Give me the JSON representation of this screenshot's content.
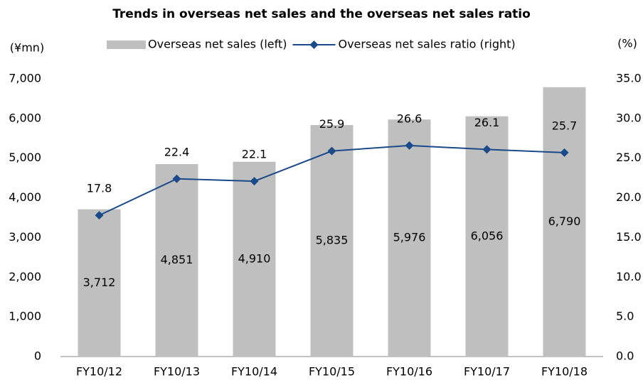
{
  "chart_data": {
    "type": "bar-line",
    "title": "Trends in overseas net sales and the overseas net sales ratio",
    "y_label": "(¥mn)",
    "y2_label": "(%)",
    "categories": [
      "FY10/12",
      "FY10/13",
      "FY10/14",
      "FY10/15",
      "FY10/16",
      "FY10/17",
      "FY10/18"
    ],
    "series": [
      {
        "name": "Overseas net sales (left)",
        "type": "bar",
        "axis": "y",
        "color": "#bfbfbf",
        "values": [
          3712,
          4851,
          4910,
          5835,
          5976,
          6056,
          6790
        ],
        "value_labels": [
          "3,712",
          "4,851",
          "4,910",
          "5,835",
          "5,976",
          "6,056",
          "6,790"
        ]
      },
      {
        "name": "Overseas net sales ratio (right)",
        "type": "line",
        "axis": "y2",
        "color": "#1b4a8a",
        "values": [
          17.8,
          22.4,
          22.1,
          25.9,
          26.6,
          26.1,
          25.7
        ]
      }
    ],
    "ylim": [
      0,
      7000
    ],
    "yticks": [
      0,
      {
        "value": 1000,
        "label": "1,000"
      },
      {
        "value": 2000,
        "label": "2,000"
      },
      {
        "value": 3000,
        "label": "3,000"
      },
      {
        "value": 4000,
        "label": "4,000"
      },
      {
        "value": 5000,
        "label": "5,000"
      },
      {
        "value": 6000,
        "label": "6,000"
      },
      {
        "value": 7000,
        "label": "7,000"
      }
    ],
    "y2lim": [
      0,
      35
    ],
    "y2ticks": [
      {
        "value": 0,
        "label": "0.0"
      },
      {
        "value": 5,
        "label": "5.0"
      },
      {
        "value": 10,
        "label": "10.0"
      },
      {
        "value": 15,
        "label": "15.0"
      },
      {
        "value": 20,
        "label": "20.0"
      },
      {
        "value": 25,
        "label": "25.0"
      },
      {
        "value": 30,
        "label": "30.0"
      },
      {
        "value": 35,
        "label": "35.0"
      }
    ],
    "grid": false,
    "legend": "top"
  }
}
